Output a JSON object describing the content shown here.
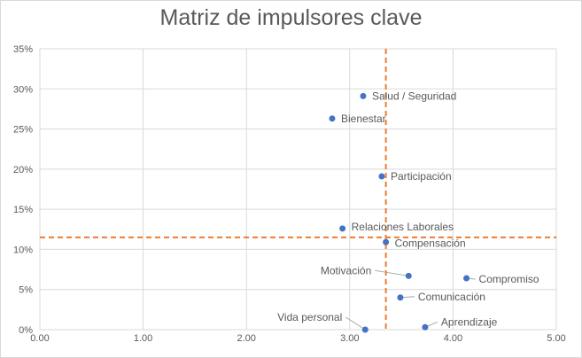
{
  "chart_data": {
    "type": "scatter",
    "title": "Matriz de impulsores clave",
    "xlim": [
      0,
      5
    ],
    "ylim": [
      0,
      0.35
    ],
    "x_ticks": [
      "0.00",
      "1.00",
      "2.00",
      "3.00",
      "4.00",
      "5.00"
    ],
    "y_ticks": [
      "0%",
      "5%",
      "10%",
      "15%",
      "20%",
      "25%",
      "30%",
      "35%"
    ],
    "grid": true,
    "reference_lines": {
      "x": 3.35,
      "y": 0.115
    },
    "colors": {
      "point": "#4472c4",
      "reference": "#ed7d31",
      "grid": "#d9d9d9",
      "text": "#595959"
    },
    "points": [
      {
        "label": "Salud / Seguridad",
        "x": 3.13,
        "y": 0.291
      },
      {
        "label": "Bienestar",
        "x": 2.83,
        "y": 0.263
      },
      {
        "label": "Participación",
        "x": 3.31,
        "y": 0.191
      },
      {
        "label": "Relaciones Laborales",
        "x": 2.93,
        "y": 0.126
      },
      {
        "label": "Compensación",
        "x": 3.35,
        "y": 0.109
      },
      {
        "label": "Motivación",
        "x": 3.57,
        "y": 0.067
      },
      {
        "label": "Compromiso",
        "x": 4.13,
        "y": 0.064
      },
      {
        "label": "Comunicación",
        "x": 3.49,
        "y": 0.04
      },
      {
        "label": "Vida personal",
        "x": 3.15,
        "y": 0.0
      },
      {
        "label": "Aprendizaje",
        "x": 3.73,
        "y": 0.003
      }
    ]
  }
}
